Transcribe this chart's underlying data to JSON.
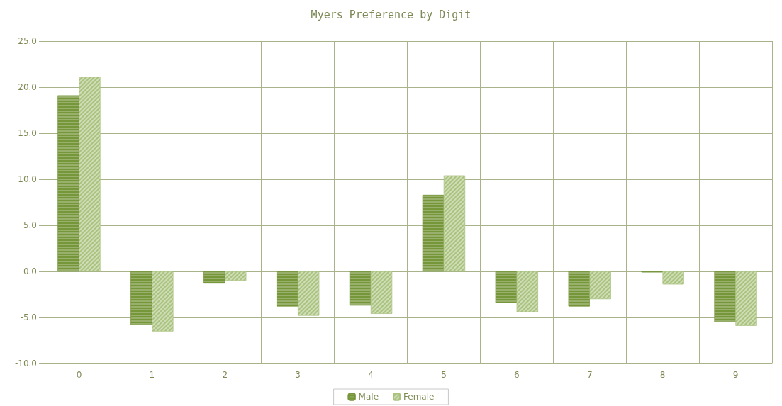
{
  "chart_data": {
    "type": "bar",
    "title": "Myers Preference by Digit",
    "categories": [
      "0",
      "1",
      "2",
      "3",
      "4",
      "5",
      "6",
      "7",
      "8",
      "9"
    ],
    "series": [
      {
        "name": "Male",
        "color": "#76963a",
        "values": [
          19.1,
          -5.8,
          -1.3,
          -3.8,
          -3.7,
          8.3,
          -3.4,
          -3.8,
          -0.1,
          -5.5
        ]
      },
      {
        "name": "Female",
        "color": "#a9c27e",
        "values": [
          21.1,
          -6.5,
          -1.0,
          -4.8,
          -4.6,
          10.4,
          -4.4,
          -3.0,
          -1.4,
          -5.9
        ]
      }
    ],
    "ylim": [
      -10,
      25
    ],
    "yticks": [
      {
        "value": -10,
        "label": "-10.0"
      },
      {
        "value": -5,
        "label": "-5.0"
      },
      {
        "value": 0,
        "label": "0.0"
      },
      {
        "value": 5,
        "label": "5.0"
      },
      {
        "value": 10,
        "label": "10.0"
      },
      {
        "value": 15,
        "label": "15.0"
      },
      {
        "value": 20,
        "label": "20.0"
      },
      {
        "value": 25,
        "label": "25.0"
      }
    ],
    "grid": true,
    "legend": "bottom"
  }
}
